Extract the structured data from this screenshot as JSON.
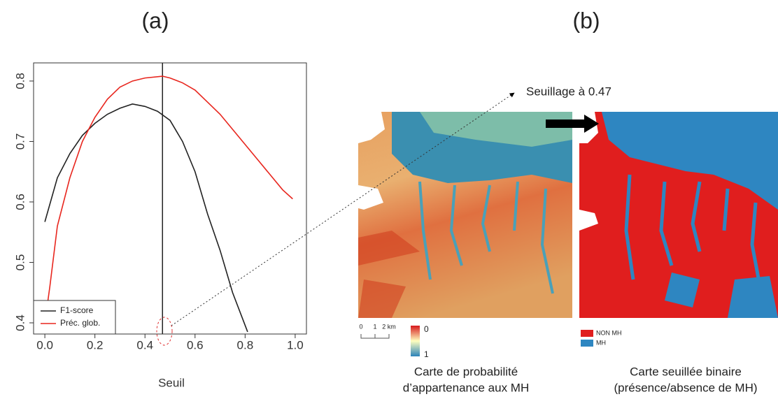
{
  "chart_data": {
    "type": "line",
    "title": "(a)",
    "xlabel": "Seuil",
    "xlim": [
      -0.045,
      1.045
    ],
    "ylim": [
      0.3815,
      0.83
    ],
    "xticks": [
      {
        "value": 0,
        "label": "0.0"
      },
      0.2,
      0.4,
      0.6,
      0.8,
      {
        "value": 1,
        "label": "1.0"
      }
    ],
    "yticks": [
      0.4,
      0.5,
      0.6,
      0.7,
      0.8
    ],
    "threshold": 0.47,
    "legend": "lower left",
    "series": [
      {
        "name": "F1-score",
        "color": "#222222",
        "x": [
          0,
          0.05,
          0.1,
          0.15,
          0.2,
          0.25,
          0.3,
          0.35,
          0.4,
          0.45,
          0.5,
          0.55,
          0.6,
          0.65,
          0.7,
          0.75,
          0.81
        ],
        "values": [
          0.567,
          0.64,
          0.68,
          0.71,
          0.73,
          0.745,
          0.755,
          0.762,
          0.758,
          0.75,
          0.735,
          0.7,
          0.65,
          0.58,
          0.52,
          0.45,
          0.385
        ]
      },
      {
        "name": "Préc. glob.",
        "color": "#e8261e",
        "x": [
          0,
          0.02,
          0.05,
          0.1,
          0.15,
          0.2,
          0.25,
          0.3,
          0.35,
          0.4,
          0.47,
          0.5,
          0.55,
          0.6,
          0.65,
          0.7,
          0.75,
          0.8,
          0.85,
          0.9,
          0.95,
          0.99
        ],
        "values": [
          0.4,
          0.46,
          0.56,
          0.64,
          0.7,
          0.74,
          0.77,
          0.79,
          0.8,
          0.805,
          0.808,
          0.805,
          0.797,
          0.785,
          0.765,
          0.745,
          0.72,
          0.695,
          0.67,
          0.645,
          0.62,
          0.605
        ]
      }
    ]
  },
  "panel_b": {
    "title": "(b)",
    "annotation": "Seuillage à 0.47",
    "scale_bar": [
      "0",
      "1",
      "2 km"
    ],
    "colorbar": [
      "0",
      "1"
    ],
    "legend": [
      {
        "label": "NON MH",
        "color": "#e01e1e"
      },
      {
        "label": "MH",
        "color": "#2e86c1"
      }
    ],
    "caption_left": [
      "Carte de probabilité",
      "d’appartenance aux MH"
    ],
    "caption_right": [
      "Carte seuillée binaire",
      "(présence/absence de MH)"
    ]
  }
}
